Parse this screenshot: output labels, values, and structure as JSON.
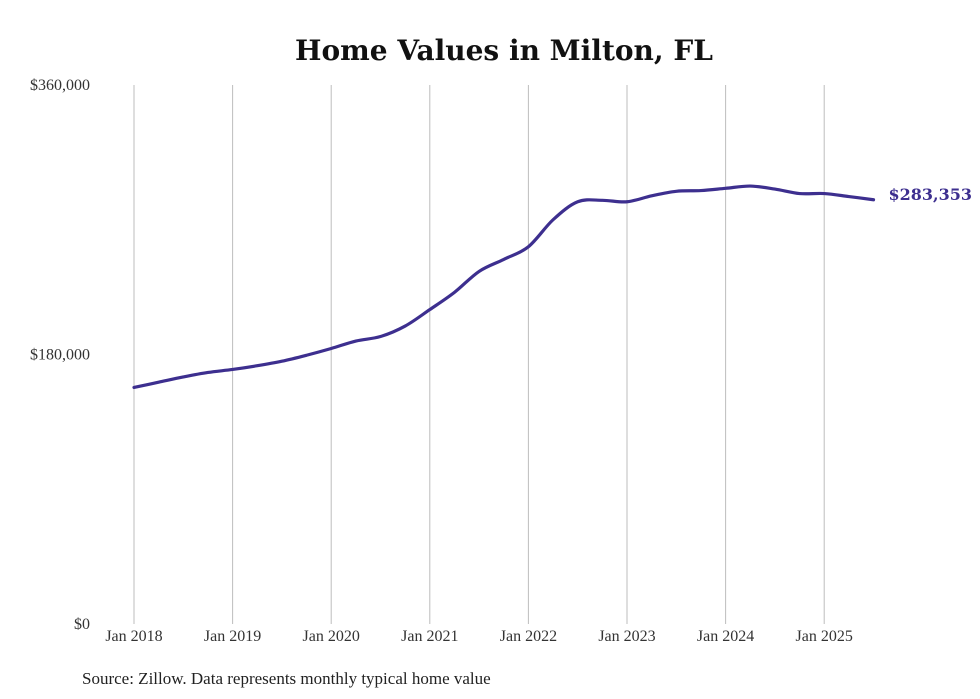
{
  "chart_data": {
    "type": "line",
    "title": "Home Values in Milton, FL",
    "source": "Source: Zillow. Data represents monthly typical home value",
    "ylim": [
      0,
      360000
    ],
    "yticks": [
      {
        "value": 0,
        "label": "$0"
      },
      {
        "value": 180000,
        "label": "$180,000"
      },
      {
        "value": 360000,
        "label": "$360,000"
      }
    ],
    "xticks": [
      {
        "year": 2018,
        "label": "Jan 2018"
      },
      {
        "year": 2019,
        "label": "Jan 2019"
      },
      {
        "year": 2020,
        "label": "Jan 2020"
      },
      {
        "year": 2021,
        "label": "Jan 2021"
      },
      {
        "year": 2022,
        "label": "Jan 2022"
      },
      {
        "year": 2023,
        "label": "Jan 2023"
      },
      {
        "year": 2024,
        "label": "Jan 2024"
      },
      {
        "year": 2025,
        "label": "Jan 2025"
      }
    ],
    "grid": {
      "vertical": true,
      "horizontal": false
    },
    "series": [
      {
        "color": "#3d2f8f",
        "end_label": "$283,353",
        "points": [
          {
            "date": "2018-01",
            "value": 158000
          },
          {
            "date": "2018-04",
            "value": 161500
          },
          {
            "date": "2018-07",
            "value": 165000
          },
          {
            "date": "2018-10",
            "value": 168000
          },
          {
            "date": "2019-01",
            "value": 170000
          },
          {
            "date": "2019-04",
            "value": 172500
          },
          {
            "date": "2019-07",
            "value": 175500
          },
          {
            "date": "2019-10",
            "value": 179500
          },
          {
            "date": "2020-01",
            "value": 184000
          },
          {
            "date": "2020-04",
            "value": 189000
          },
          {
            "date": "2020-07",
            "value": 192000
          },
          {
            "date": "2020-10",
            "value": 199000
          },
          {
            "date": "2021-01",
            "value": 210000
          },
          {
            "date": "2021-04",
            "value": 221500
          },
          {
            "date": "2021-07",
            "value": 235500
          },
          {
            "date": "2021-10",
            "value": 243500
          },
          {
            "date": "2022-01",
            "value": 252000
          },
          {
            "date": "2022-04",
            "value": 270000
          },
          {
            "date": "2022-07",
            "value": 282000
          },
          {
            "date": "2022-10",
            "value": 283000
          },
          {
            "date": "2023-01",
            "value": 282000
          },
          {
            "date": "2023-04",
            "value": 286000
          },
          {
            "date": "2023-07",
            "value": 289000
          },
          {
            "date": "2023-10",
            "value": 289500
          },
          {
            "date": "2024-01",
            "value": 291000
          },
          {
            "date": "2024-04",
            "value": 292500
          },
          {
            "date": "2024-07",
            "value": 290500
          },
          {
            "date": "2024-10",
            "value": 287500
          },
          {
            "date": "2025-01",
            "value": 287500
          },
          {
            "date": "2025-04",
            "value": 285500
          },
          {
            "date": "2025-07",
            "value": 283353
          }
        ]
      }
    ]
  }
}
